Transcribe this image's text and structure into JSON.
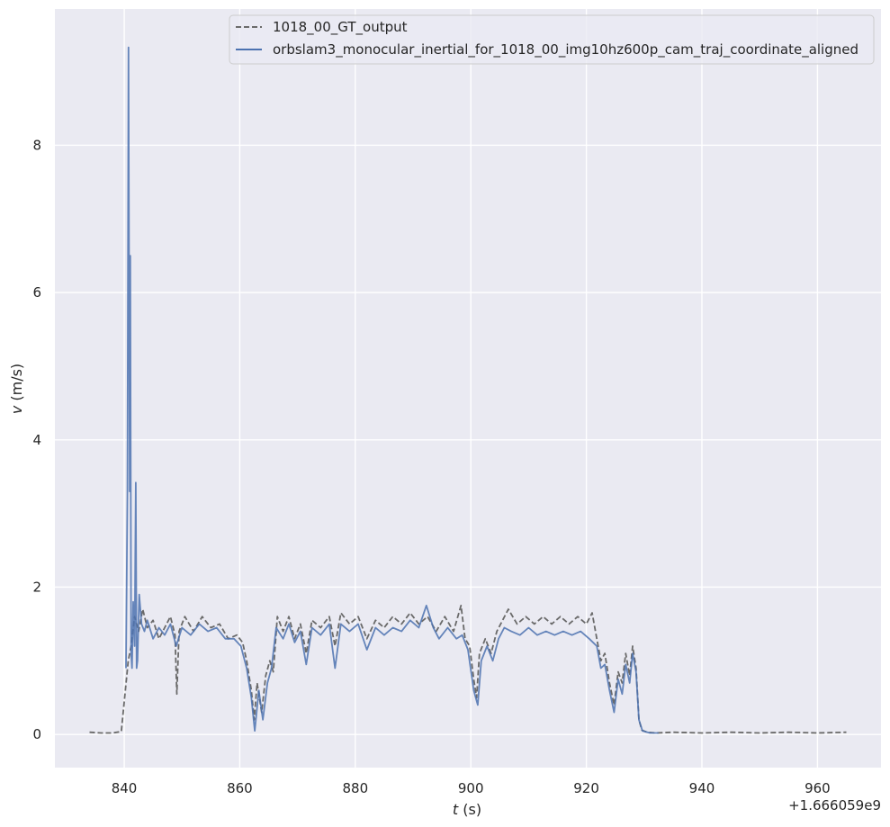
{
  "chart_data": {
    "type": "line",
    "title": "",
    "xlabel": {
      "symbol": "t",
      "unit": " (s)"
    },
    "ylabel": {
      "symbol": "v",
      "unit": " (m/s)"
    },
    "x_offset_label": "+1.666059e9",
    "xlim": [
      828,
      971
    ],
    "ylim": [
      -0.45,
      9.85
    ],
    "x_ticks": [
      840,
      860,
      880,
      900,
      920,
      940,
      960
    ],
    "y_ticks": [
      0,
      2,
      4,
      6,
      8
    ],
    "grid": true,
    "legend_position": "top-right",
    "background_color": "#eaeaf2",
    "series": [
      {
        "name": "1018_00_GT_output",
        "color": "#6a6a6a",
        "style": "dashed",
        "points": [
          [
            834,
            0.03
          ],
          [
            836,
            0.02
          ],
          [
            838,
            0.02
          ],
          [
            839.5,
            0.04
          ],
          [
            840.2,
            0.6
          ],
          [
            840.7,
            1.0
          ],
          [
            841.2,
            1.2
          ],
          [
            841.8,
            1.6
          ],
          [
            842.5,
            1.4
          ],
          [
            843.2,
            1.7
          ],
          [
            844,
            1.45
          ],
          [
            845,
            1.55
          ],
          [
            846,
            1.3
          ],
          [
            847,
            1.45
          ],
          [
            848,
            1.6
          ],
          [
            848.8,
            1.35
          ],
          [
            849.1,
            0.55
          ],
          [
            849.5,
            1.4
          ],
          [
            850.5,
            1.6
          ],
          [
            852,
            1.4
          ],
          [
            853.5,
            1.6
          ],
          [
            855,
            1.45
          ],
          [
            856.5,
            1.5
          ],
          [
            858,
            1.3
          ],
          [
            859.5,
            1.35
          ],
          [
            860.5,
            1.25
          ],
          [
            861.2,
            1.0
          ],
          [
            862,
            0.6
          ],
          [
            862.5,
            0.2
          ],
          [
            863,
            0.7
          ],
          [
            863.8,
            0.3
          ],
          [
            864.5,
            0.8
          ],
          [
            865.2,
            1.0
          ],
          [
            865.8,
            0.85
          ],
          [
            866.5,
            1.6
          ],
          [
            867.5,
            1.4
          ],
          [
            868.5,
            1.6
          ],
          [
            869.5,
            1.3
          ],
          [
            870.5,
            1.5
          ],
          [
            871.5,
            1.1
          ],
          [
            872.5,
            1.55
          ],
          [
            874,
            1.45
          ],
          [
            875.5,
            1.6
          ],
          [
            876.5,
            1.2
          ],
          [
            877.5,
            1.65
          ],
          [
            879,
            1.5
          ],
          [
            880.5,
            1.6
          ],
          [
            882,
            1.3
          ],
          [
            883.5,
            1.55
          ],
          [
            885,
            1.45
          ],
          [
            886.5,
            1.6
          ],
          [
            888,
            1.5
          ],
          [
            889.5,
            1.65
          ],
          [
            891,
            1.5
          ],
          [
            892.5,
            1.6
          ],
          [
            894,
            1.4
          ],
          [
            895.5,
            1.6
          ],
          [
            897,
            1.4
          ],
          [
            898.3,
            1.75
          ],
          [
            899,
            1.3
          ],
          [
            899.8,
            1.2
          ],
          [
            900.5,
            0.75
          ],
          [
            901,
            0.5
          ],
          [
            901.5,
            1.1
          ],
          [
            902.5,
            1.3
          ],
          [
            903.5,
            1.1
          ],
          [
            904.5,
            1.4
          ],
          [
            905.5,
            1.55
          ],
          [
            906.5,
            1.7
          ],
          [
            908,
            1.5
          ],
          [
            909.5,
            1.6
          ],
          [
            911,
            1.5
          ],
          [
            912.5,
            1.6
          ],
          [
            914,
            1.5
          ],
          [
            915.5,
            1.6
          ],
          [
            917,
            1.5
          ],
          [
            918.5,
            1.6
          ],
          [
            920,
            1.5
          ],
          [
            921,
            1.65
          ],
          [
            921.8,
            1.3
          ],
          [
            922.5,
            1.0
          ],
          [
            923.2,
            1.1
          ],
          [
            924,
            0.7
          ],
          [
            924.8,
            0.4
          ],
          [
            925.5,
            0.85
          ],
          [
            926.2,
            0.7
          ],
          [
            926.8,
            1.1
          ],
          [
            927.5,
            0.8
          ],
          [
            928,
            1.2
          ],
          [
            928.6,
            0.9
          ],
          [
            929.1,
            0.2
          ],
          [
            929.6,
            0.06
          ],
          [
            930.5,
            0.03
          ],
          [
            932,
            0.02
          ],
          [
            935,
            0.03
          ],
          [
            940,
            0.02
          ],
          [
            945,
            0.03
          ],
          [
            950,
            0.02
          ],
          [
            955,
            0.03
          ],
          [
            960,
            0.02
          ],
          [
            965,
            0.03
          ]
        ]
      },
      {
        "name": "orbslam3_monocular_inertial_for_1018_00_img10hz600p_cam_traj_coordinate_aligned",
        "color": "#4c72b0",
        "style": "solid",
        "points": [
          [
            840.3,
            0.9
          ],
          [
            840.55,
            3.3
          ],
          [
            840.75,
            9.33
          ],
          [
            840.95,
            3.3
          ],
          [
            841.05,
            6.5
          ],
          [
            841.2,
            1.1
          ],
          [
            841.35,
            0.9
          ],
          [
            841.55,
            1.8
          ],
          [
            841.8,
            1.2
          ],
          [
            842,
            3.42
          ],
          [
            842.15,
            0.9
          ],
          [
            842.3,
            1.0
          ],
          [
            842.6,
            1.9
          ],
          [
            843,
            1.5
          ],
          [
            843.5,
            1.4
          ],
          [
            844,
            1.55
          ],
          [
            845,
            1.3
          ],
          [
            846,
            1.45
          ],
          [
            847,
            1.35
          ],
          [
            848,
            1.5
          ],
          [
            849,
            1.2
          ],
          [
            850,
            1.45
          ],
          [
            851.5,
            1.35
          ],
          [
            853,
            1.5
          ],
          [
            854.5,
            1.4
          ],
          [
            856,
            1.45
          ],
          [
            857.5,
            1.3
          ],
          [
            859,
            1.3
          ],
          [
            860.2,
            1.2
          ],
          [
            861.2,
            0.9
          ],
          [
            862,
            0.5
          ],
          [
            862.6,
            0.05
          ],
          [
            863.3,
            0.6
          ],
          [
            864,
            0.2
          ],
          [
            864.8,
            0.7
          ],
          [
            865.5,
            0.9
          ],
          [
            866.3,
            1.45
          ],
          [
            867.5,
            1.3
          ],
          [
            868.5,
            1.5
          ],
          [
            869.5,
            1.25
          ],
          [
            870.5,
            1.4
          ],
          [
            871.5,
            0.95
          ],
          [
            872.5,
            1.45
          ],
          [
            874,
            1.35
          ],
          [
            875.5,
            1.5
          ],
          [
            876.5,
            0.9
          ],
          [
            877.5,
            1.5
          ],
          [
            879,
            1.4
          ],
          [
            880.5,
            1.5
          ],
          [
            882,
            1.15
          ],
          [
            883.5,
            1.45
          ],
          [
            885,
            1.35
          ],
          [
            886.5,
            1.45
          ],
          [
            888,
            1.4
          ],
          [
            889.5,
            1.55
          ],
          [
            891,
            1.45
          ],
          [
            892.3,
            1.75
          ],
          [
            893.5,
            1.45
          ],
          [
            894.5,
            1.3
          ],
          [
            896,
            1.45
          ],
          [
            897.5,
            1.3
          ],
          [
            898.5,
            1.35
          ],
          [
            899.5,
            1.15
          ],
          [
            900.5,
            0.6
          ],
          [
            901.2,
            0.4
          ],
          [
            901.8,
            1.0
          ],
          [
            902.8,
            1.2
          ],
          [
            903.8,
            1.0
          ],
          [
            904.8,
            1.3
          ],
          [
            905.8,
            1.45
          ],
          [
            907,
            1.4
          ],
          [
            908.5,
            1.35
          ],
          [
            910,
            1.45
          ],
          [
            911.5,
            1.35
          ],
          [
            913,
            1.4
          ],
          [
            914.5,
            1.35
          ],
          [
            916,
            1.4
          ],
          [
            917.5,
            1.35
          ],
          [
            919,
            1.4
          ],
          [
            920.5,
            1.3
          ],
          [
            921.8,
            1.2
          ],
          [
            922.5,
            0.9
          ],
          [
            923.2,
            0.95
          ],
          [
            924,
            0.6
          ],
          [
            924.8,
            0.3
          ],
          [
            925.5,
            0.75
          ],
          [
            926.2,
            0.55
          ],
          [
            926.8,
            0.95
          ],
          [
            927.5,
            0.7
          ],
          [
            928,
            1.1
          ],
          [
            928.6,
            0.85
          ],
          [
            929.1,
            0.2
          ],
          [
            929.7,
            0.05
          ],
          [
            931,
            0.02
          ],
          [
            932.5,
            0.02
          ]
        ]
      }
    ]
  }
}
